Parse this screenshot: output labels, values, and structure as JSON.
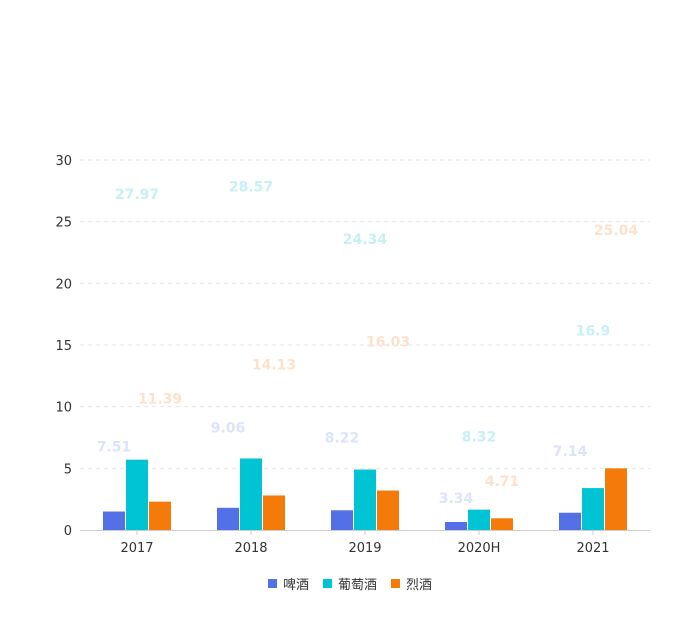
{
  "chart_data": {
    "type": "bar",
    "categories": [
      "2017",
      "2018",
      "2019",
      "2020H",
      "2021"
    ],
    "series": [
      {
        "name": "啤酒",
        "color": "#5470e6",
        "values": [
          1.5,
          1.8,
          1.6,
          0.65,
          1.4
        ],
        "labels": [
          "7.51",
          "9.06",
          "8.22",
          "3.34",
          "7.14"
        ]
      },
      {
        "name": "葡萄酒",
        "color": "#00c4d4",
        "values": [
          5.7,
          5.8,
          4.9,
          1.65,
          3.4
        ],
        "labels": [
          "27.97",
          "28.57",
          "24.34",
          "8.32",
          "16.9"
        ]
      },
      {
        "name": "烈酒",
        "color": "#f47a09",
        "values": [
          2.3,
          2.8,
          3.2,
          0.95,
          5.0
        ],
        "labels": [
          "11.39",
          "14.13",
          "16.03",
          "4.71",
          "25.04"
        ]
      }
    ],
    "label_values": {
      "啤酒": [
        7.51,
        9.06,
        8.22,
        3.34,
        7.14
      ],
      "葡萄酒": [
        27.97,
        28.57,
        24.34,
        8.32,
        16.9
      ],
      "烈酒": [
        11.39,
        14.13,
        16.03,
        4.71,
        25.04
      ]
    },
    "label_colors": [
      "#dde3fa",
      "#c7f0f5",
      "#fde2cb"
    ],
    "yticks": [
      "0",
      "5",
      "10",
      "15",
      "20",
      "25",
      "30"
    ],
    "ylim": [
      0,
      30
    ],
    "grid": true,
    "legend_position": "bottom-center"
  }
}
